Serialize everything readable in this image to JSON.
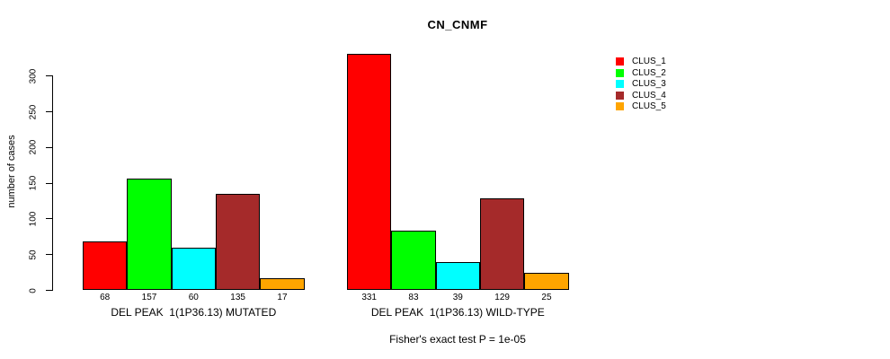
{
  "chart_data": {
    "type": "bar",
    "title": "CN_CNMF",
    "ylabel": "number of cases",
    "xlabel": "",
    "ylim": [
      0,
      300
    ],
    "yticks": [
      0,
      50,
      100,
      150,
      200,
      250,
      300
    ],
    "grid": false,
    "legend_position": "right-outside-top",
    "categories": [
      "DEL PEAK  1(1P36.13) MUTATED",
      "DEL PEAK  1(1P36.13) WILD-TYPE"
    ],
    "series": [
      {
        "name": "CLUS_1",
        "color": "#FF0000",
        "values": [
          68,
          331
        ]
      },
      {
        "name": "CLUS_2",
        "color": "#00FF00",
        "values": [
          157,
          83
        ]
      },
      {
        "name": "CLUS_3",
        "color": "#00FFFF",
        "values": [
          60,
          39
        ]
      },
      {
        "name": "CLUS_4",
        "color": "#A52A2A",
        "values": [
          135,
          129
        ]
      },
      {
        "name": "CLUS_5",
        "color": "#FFA500",
        "values": [
          17,
          25
        ]
      }
    ],
    "bar_value_labels_shown": true,
    "annotation": "Fisher's exact test P = 1e-05"
  }
}
